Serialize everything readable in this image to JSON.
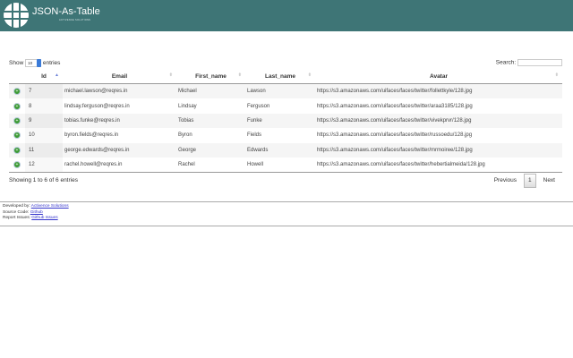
{
  "header": {
    "title": "JSON-As-Table",
    "subtitle": "ACTIVENCE SOLUTIONS",
    "accent": "#3e7576"
  },
  "controls": {
    "show_label": "Show",
    "entries_value": "10",
    "entries_label": "entries",
    "search_label": "Search:",
    "search_value": ""
  },
  "table": {
    "columns": [
      "Id",
      "Email",
      "First_name",
      "Last_name",
      "Avatar"
    ],
    "rows": [
      [
        "7",
        "michael.lawson@reqres.in",
        "Michael",
        "Lawson",
        "https://s3.amazonaws.com/uifaces/faces/twitter/follettkyle/128.jpg"
      ],
      [
        "8",
        "lindsay.ferguson@reqres.in",
        "Lindsay",
        "Ferguson",
        "https://s3.amazonaws.com/uifaces/faces/twitter/araa3185/128.jpg"
      ],
      [
        "9",
        "tobias.funke@reqres.in",
        "Tobias",
        "Funke",
        "https://s3.amazonaws.com/uifaces/faces/twitter/vivekprvr/128.jpg"
      ],
      [
        "10",
        "byron.fields@reqres.in",
        "Byron",
        "Fields",
        "https://s3.amazonaws.com/uifaces/faces/twitter/russoedu/128.jpg"
      ],
      [
        "11",
        "george.edwards@reqres.in",
        "George",
        "Edwards",
        "https://s3.amazonaws.com/uifaces/faces/twitter/mrmoiree/128.jpg"
      ],
      [
        "12",
        "rachel.howell@reqres.in",
        "Rachel",
        "Howell",
        "https://s3.amazonaws.com/uifaces/faces/twitter/hebertialmeida/128.jpg"
      ]
    ]
  },
  "info": "Showing 1 to 6 of 6 entries",
  "pagination": {
    "previous": "Previous",
    "current": "1",
    "next": "Next"
  },
  "footer": {
    "dev_label": "Developed by:",
    "dev_link": "Activence Solutions",
    "src_label": "Source Code:",
    "src_link": "Github",
    "issues_label": "Report Issues:",
    "issues_link": "Github Issues"
  }
}
